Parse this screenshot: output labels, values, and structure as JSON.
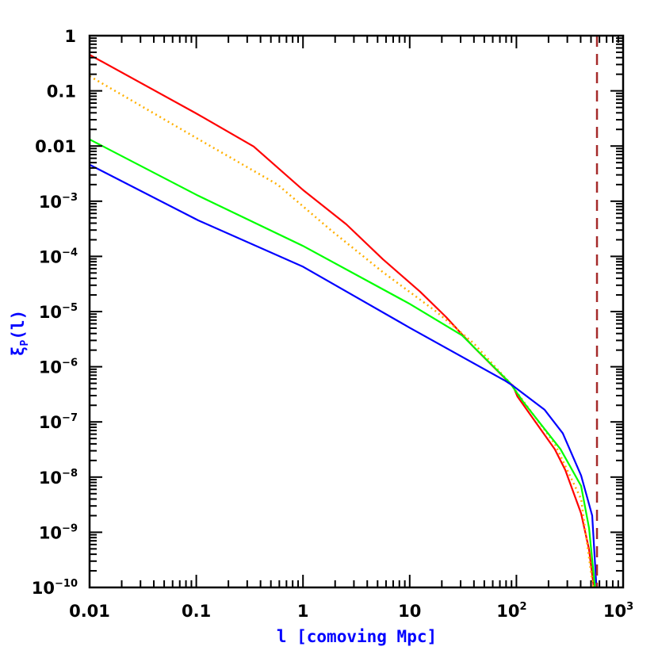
{
  "chart_data": {
    "type": "line",
    "xlabel": "l [comoving Mpc]",
    "ylabel": {
      "main": "ξ",
      "sub": "P",
      "arg": "(l)"
    },
    "xscale": "log",
    "yscale": "log",
    "xlim": [
      0.01,
      1000
    ],
    "ylim": [
      1e-10,
      1
    ],
    "grid": false,
    "x_ticks": [
      {
        "value": 0.01,
        "label": "0.01",
        "exp": ""
      },
      {
        "value": 0.1,
        "label": "0.1",
        "exp": ""
      },
      {
        "value": 1,
        "label": "1",
        "exp": ""
      },
      {
        "value": 10,
        "label": "10",
        "exp": ""
      },
      {
        "value": 100,
        "label": "10",
        "exp": "2"
      },
      {
        "value": 1000,
        "label": "10",
        "exp": "3"
      }
    ],
    "y_ticks": [
      {
        "value": 1,
        "label": "1",
        "exp": ""
      },
      {
        "value": 0.1,
        "label": "0.1",
        "exp": ""
      },
      {
        "value": 0.01,
        "label": "0.01",
        "exp": ""
      },
      {
        "value": 0.001,
        "label": "10",
        "exp": "−3"
      },
      {
        "value": 0.0001,
        "label": "10",
        "exp": "−4"
      },
      {
        "value": 1e-05,
        "label": "10",
        "exp": "−5"
      },
      {
        "value": 1e-06,
        "label": "10",
        "exp": "−6"
      },
      {
        "value": 1e-07,
        "label": "10",
        "exp": "−7"
      },
      {
        "value": 1e-08,
        "label": "10",
        "exp": "−8"
      },
      {
        "value": 1e-09,
        "label": "10",
        "exp": "−9"
      },
      {
        "value": 1e-10,
        "label": "10",
        "exp": "−10"
      }
    ],
    "series": [
      {
        "color": "#ff0000",
        "style": "solid",
        "x": [
          0.01,
          0.1,
          0.345,
          1,
          2.55,
          5.6,
          12.5,
          22,
          39.5,
          82,
          93,
          102,
          229,
          287,
          404,
          479,
          522,
          531
        ],
        "y": [
          0.45,
          0.039,
          0.0098,
          0.0016,
          0.00038,
          8.9e-05,
          2.3e-05,
          7.9e-06,
          2.3e-06,
          5.6e-07,
          4.5e-07,
          2.9e-07,
          3.2e-08,
          1.35e-08,
          2.2e-09,
          4.9e-10,
          1.3e-10,
          1e-10
        ]
      },
      {
        "color": "#ffb000",
        "style": "dotted",
        "x": [
          0.01,
          0.1,
          0.577,
          1.82,
          5.6,
          17.7,
          39.5,
          87,
          229,
          404,
          513,
          530
        ],
        "y": [
          0.185,
          0.014,
          0.002,
          0.0003,
          5.2e-05,
          1e-05,
          2.7e-06,
          5.1e-07,
          4e-08,
          4e-09,
          1.3e-10,
          1e-10
        ]
      },
      {
        "color": "#00ff00",
        "style": "solid",
        "x": [
          0.01,
          0.104,
          1,
          10,
          31,
          87,
          116,
          259,
          404,
          479,
          537,
          545
        ],
        "y": [
          0.0132,
          0.00126,
          0.000155,
          1.38e-05,
          3.7e-06,
          5.1e-07,
          2.3e-07,
          3.2e-08,
          6.9e-09,
          1.2e-09,
          1.3e-10,
          1e-10
        ]
      },
      {
        "color": "#0000ff",
        "style": "solid",
        "x": [
          0.01,
          0.104,
          1,
          10,
          78,
          93,
          184,
          272,
          404,
          513,
          558,
          569
        ],
        "y": [
          0.0046,
          0.00045,
          6.5e-05,
          5.1e-06,
          5.6e-07,
          4.5e-07,
          1.66e-07,
          6.2e-08,
          1.07e-08,
          2e-09,
          1.3e-10,
          1e-10
        ]
      }
    ],
    "vertical_line": {
      "x": 569,
      "color": "#a52a2a",
      "style": "dashed"
    }
  }
}
